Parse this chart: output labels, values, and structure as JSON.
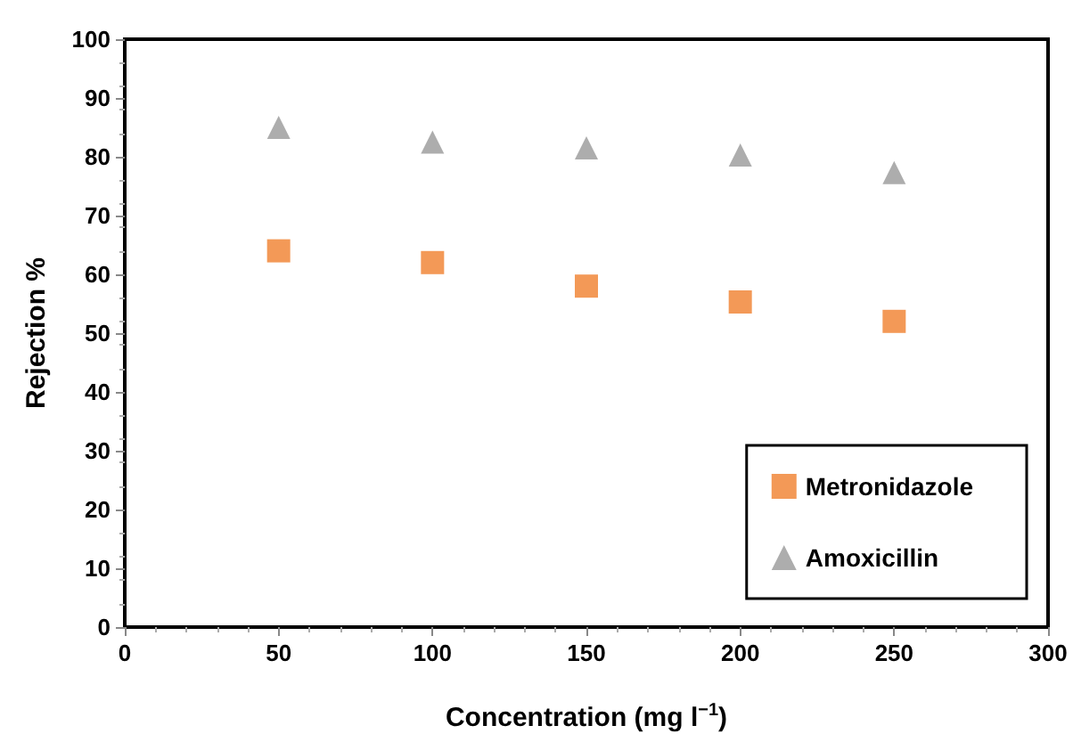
{
  "chart_data": {
    "type": "scatter",
    "xlabel": "Concentration (mg l$^{−1}$)",
    "ylabel": "Rejection %",
    "x": [
      50,
      100,
      150,
      200,
      250
    ],
    "series": [
      {
        "name": "Metronidazole",
        "color": "#f07f2d",
        "marker": "square",
        "values": [
          64,
          62,
          58,
          55.3,
          52
        ]
      },
      {
        "name": "Amoxicillin",
        "color": "#999999",
        "marker": "triangle",
        "values": [
          85,
          82.5,
          81.5,
          80.3,
          77.3
        ]
      }
    ],
    "xlim": [
      0,
      300
    ],
    "xticks": [
      0,
      50,
      100,
      150,
      200,
      250,
      300
    ],
    "ylim": [
      0,
      100
    ],
    "yticks": [
      0,
      10,
      20,
      30,
      40,
      50,
      60,
      70,
      80,
      90,
      100
    ],
    "grid": false,
    "legend": "bottom right"
  }
}
